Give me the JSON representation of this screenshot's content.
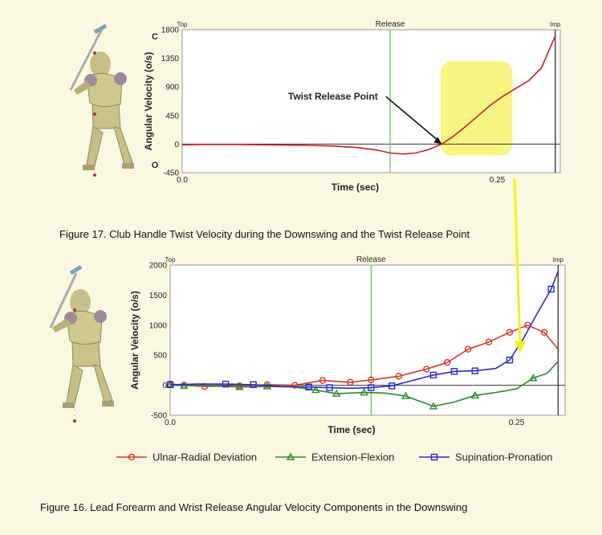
{
  "chart_data": [
    {
      "type": "line",
      "title": "Club Handle Twist Velocity",
      "xlabel": "Time (sec)",
      "ylabel": "Angular Velocity (o/s)",
      "side_letters": {
        "top": "C",
        "bottom": "O"
      },
      "xlim": [
        0.0,
        0.3
      ],
      "ylim": [
        -450,
        1800
      ],
      "x_ticks": [
        "0.0",
        "0.25"
      ],
      "x_tick_values": [
        0.0,
        0.25
      ],
      "y_ticks": [
        "1800",
        "1350",
        "900",
        "450",
        "0",
        "-450"
      ],
      "y_tick_values": [
        1800,
        1350,
        900,
        450,
        0,
        -450
      ],
      "markers": [
        {
          "label": "Top",
          "x": 0.0
        },
        {
          "label": "Release",
          "x": 0.165
        },
        {
          "label": "Imp",
          "x": 0.296
        }
      ],
      "highlight_x": [
        0.205,
        0.262
      ],
      "annotation": {
        "text": "Twist Release Point",
        "x": 0.206,
        "y": 0
      },
      "series": [
        {
          "name": "Twist Velocity",
          "color": "#cc2222",
          "x": [
            0.0,
            0.02,
            0.04,
            0.06,
            0.08,
            0.1,
            0.12,
            0.14,
            0.155,
            0.165,
            0.175,
            0.185,
            0.195,
            0.206,
            0.215,
            0.225,
            0.235,
            0.245,
            0.255,
            0.265,
            0.275,
            0.285,
            0.296
          ],
          "y": [
            -10,
            -5,
            -5,
            -10,
            -15,
            -20,
            -30,
            -55,
            -95,
            -140,
            -155,
            -140,
            -90,
            0,
            120,
            280,
            450,
            620,
            760,
            880,
            1000,
            1200,
            1700
          ]
        }
      ]
    },
    {
      "type": "line",
      "title": "Lead Forearm and Wrist Release Angular Velocity Components",
      "xlabel": "Time (sec)",
      "ylabel": "Angular Velocity (o/s)",
      "xlim": [
        0.0,
        0.285
      ],
      "ylim": [
        -500,
        2000
      ],
      "x_ticks": [
        "0.0",
        "0.25"
      ],
      "x_tick_values": [
        0.0,
        0.25
      ],
      "y_ticks": [
        "2000",
        "1500",
        "1000",
        "500",
        "0",
        "-500"
      ],
      "y_tick_values": [
        2000,
        1500,
        1000,
        500,
        0,
        -500
      ],
      "markers": [
        {
          "label": "Top",
          "x": 0.0
        },
        {
          "label": "Release",
          "x": 0.145
        },
        {
          "label": "Imp",
          "x": 0.28
        }
      ],
      "series": [
        {
          "name": "Ulnar-Radial Deviation",
          "color": "#d23a2a",
          "marker": "circle",
          "x": [
            0.0,
            0.01,
            0.025,
            0.05,
            0.07,
            0.09,
            0.11,
            0.13,
            0.145,
            0.165,
            0.185,
            0.2,
            0.215,
            0.23,
            0.245,
            0.258,
            0.27,
            0.28
          ],
          "y": [
            20,
            0,
            -20,
            -10,
            10,
            0,
            80,
            50,
            90,
            150,
            270,
            380,
            600,
            720,
            880,
            1000,
            880,
            600
          ],
          "marker_idx": [
            0,
            1,
            2,
            3,
            4,
            5,
            6,
            7,
            8,
            9,
            10,
            11,
            12,
            13,
            14,
            15,
            16
          ]
        },
        {
          "name": "Extension-Flexion",
          "color": "#2f8a2a",
          "marker": "triangle",
          "x": [
            0.0,
            0.01,
            0.025,
            0.05,
            0.07,
            0.09,
            0.105,
            0.12,
            0.14,
            0.155,
            0.17,
            0.19,
            0.205,
            0.22,
            0.235,
            0.25,
            0.262,
            0.272,
            0.28
          ],
          "y": [
            10,
            -10,
            0,
            -30,
            -20,
            -30,
            -80,
            -140,
            -120,
            -130,
            -180,
            -350,
            -280,
            -170,
            -120,
            -60,
            120,
            200,
            400
          ],
          "marker_idx": [
            0,
            1,
            3,
            4,
            6,
            7,
            8,
            10,
            11,
            13,
            16
          ]
        },
        {
          "name": "Supination-Pronation",
          "color": "#2a2acb",
          "marker": "square",
          "x": [
            0.0,
            0.02,
            0.04,
            0.06,
            0.08,
            0.1,
            0.115,
            0.13,
            0.145,
            0.16,
            0.175,
            0.19,
            0.205,
            0.22,
            0.235,
            0.245,
            0.255,
            0.265,
            0.275,
            0.28
          ],
          "y": [
            10,
            20,
            20,
            10,
            -20,
            -30,
            -40,
            -50,
            -40,
            -10,
            80,
            170,
            230,
            240,
            280,
            420,
            780,
            1200,
            1600,
            1900
          ],
          "marker_idx": [
            0,
            2,
            3,
            5,
            6,
            8,
            9,
            11,
            12,
            13,
            15,
            18
          ]
        }
      ],
      "legend": {
        "placement": "bottom",
        "entries": [
          "Ulnar-Radial Deviation",
          "Extension-Flexion",
          "Supination-Pronation"
        ]
      }
    }
  ],
  "figures": {
    "fig17": "Figure 17.  Club Handle Twist Velocity during the Downswing and the Twist Release Point",
    "fig16": "Figure 16.  Lead Forearm and Wrist Release Angular Velocity Components in the Downswing"
  },
  "colors": {
    "background": "#fbf8e1",
    "highlight": "#f4f25a",
    "release_line": "#55c455",
    "arrow": "#f2f21a",
    "imp_line": "#444444"
  }
}
